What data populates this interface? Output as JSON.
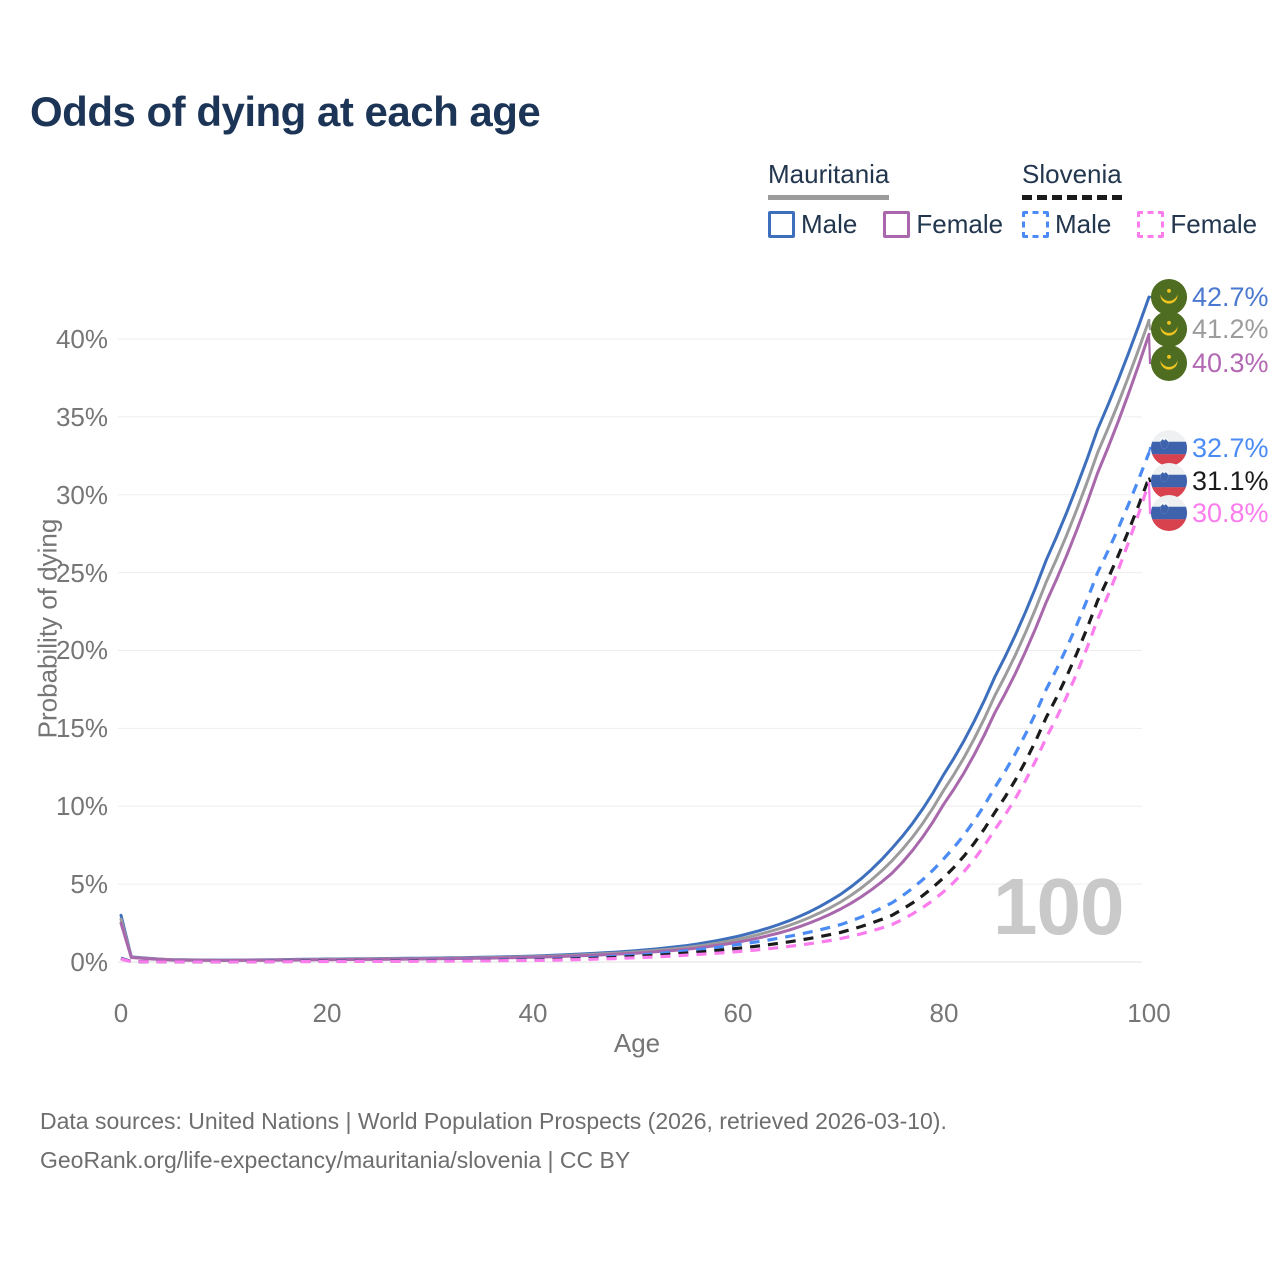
{
  "title": "Odds of dying at each age",
  "legend": {
    "groups": [
      {
        "country": "Mauritania",
        "style": "solid",
        "entries": [
          {
            "label": "Male"
          },
          {
            "label": "Female"
          }
        ]
      },
      {
        "country": "Slovenia",
        "style": "dashed",
        "entries": [
          {
            "label": "Male"
          },
          {
            "label": "Female"
          }
        ]
      }
    ]
  },
  "chart_data": {
    "type": "line",
    "title": "Odds of dying at each age",
    "xlabel": "Age",
    "ylabel": "Probability of dying",
    "xlim": [
      0,
      100
    ],
    "ylim": [
      0,
      44
    ],
    "grid": true,
    "legend_position": "top-right",
    "x_ticks": [
      "0",
      "20",
      "40",
      "60",
      "80",
      "100"
    ],
    "y_ticks": [
      "0%",
      "5%",
      "10%",
      "15%",
      "20%",
      "25%",
      "30%",
      "35%",
      "40%"
    ],
    "x": [
      0,
      1,
      5,
      10,
      15,
      20,
      25,
      30,
      35,
      40,
      45,
      50,
      55,
      60,
      65,
      70,
      75,
      80,
      85,
      90,
      95,
      100
    ],
    "series": [
      {
        "name": "Mauritania Male",
        "line": "solid",
        "color": "#3e6fbd",
        "label_color": "#4b79cf",
        "end_label": "42.7%",
        "flag": "mauritania",
        "values": [
          3.0,
          0.33,
          0.15,
          0.12,
          0.15,
          0.19,
          0.22,
          0.25,
          0.3,
          0.38,
          0.52,
          0.72,
          1.05,
          1.65,
          2.65,
          4.35,
          7.3,
          12.0,
          18.3,
          25.8,
          34.2,
          42.7
        ]
      },
      {
        "name": "Mauritania",
        "line": "solid",
        "color": "#9c9c9c",
        "label_color": "#9c9c9c",
        "end_label": "41.2%",
        "flag": "mauritania",
        "values": [
          2.75,
          0.31,
          0.14,
          0.11,
          0.13,
          0.17,
          0.2,
          0.22,
          0.27,
          0.34,
          0.46,
          0.64,
          0.93,
          1.45,
          2.35,
          3.85,
          6.5,
          11.0,
          17.1,
          24.4,
          32.7,
          41.2
        ]
      },
      {
        "name": "Mauritania Female",
        "line": "solid",
        "color": "#a868ab",
        "label_color": "#b268b2",
        "end_label": "40.3%",
        "flag": "mauritania",
        "values": [
          2.5,
          0.29,
          0.13,
          0.1,
          0.12,
          0.15,
          0.17,
          0.2,
          0.24,
          0.3,
          0.41,
          0.56,
          0.82,
          1.27,
          2.05,
          3.4,
          5.7,
          10.1,
          16.0,
          23.1,
          31.4,
          40.3
        ]
      },
      {
        "name": "Slovenia Male",
        "line": "dashed",
        "color": "#4b8bf5",
        "label_color": "#4b8bf5",
        "end_label": "32.7%",
        "flag": "slovenia",
        "values": [
          0.25,
          0.03,
          0.02,
          0.02,
          0.04,
          0.06,
          0.07,
          0.09,
          0.11,
          0.16,
          0.26,
          0.43,
          0.72,
          1.12,
          1.65,
          2.4,
          3.8,
          6.6,
          11.2,
          17.5,
          25.0,
          32.7
        ]
      },
      {
        "name": "Slovenia",
        "line": "dashed",
        "color": "#1b1b1b",
        "label_color": "#1b1b1b",
        "end_label": "31.1%",
        "flag": "slovenia",
        "values": [
          0.22,
          0.025,
          0.015,
          0.015,
          0.03,
          0.05,
          0.06,
          0.07,
          0.09,
          0.13,
          0.21,
          0.35,
          0.57,
          0.88,
          1.3,
          1.9,
          3.0,
          5.4,
          9.6,
          15.7,
          23.2,
          31.1
        ]
      },
      {
        "name": "Slovenia Female",
        "line": "dashed",
        "color": "#fb7cec",
        "label_color": "#fb7cec",
        "end_label": "30.8%",
        "flag": "slovenia",
        "values": [
          0.2,
          0.02,
          0.01,
          0.01,
          0.02,
          0.03,
          0.04,
          0.05,
          0.07,
          0.1,
          0.16,
          0.27,
          0.44,
          0.67,
          1.0,
          1.5,
          2.4,
          4.5,
          8.5,
          14.4,
          22.0,
          30.8
        ]
      }
    ]
  },
  "watermark": "100",
  "footer": {
    "line1": "Data sources: United Nations | World Population Prospects (2026, retrieved 2026-03-10).",
    "line2": "GeoRank.org/life-expectancy/mauritania/slovenia | CC BY"
  }
}
